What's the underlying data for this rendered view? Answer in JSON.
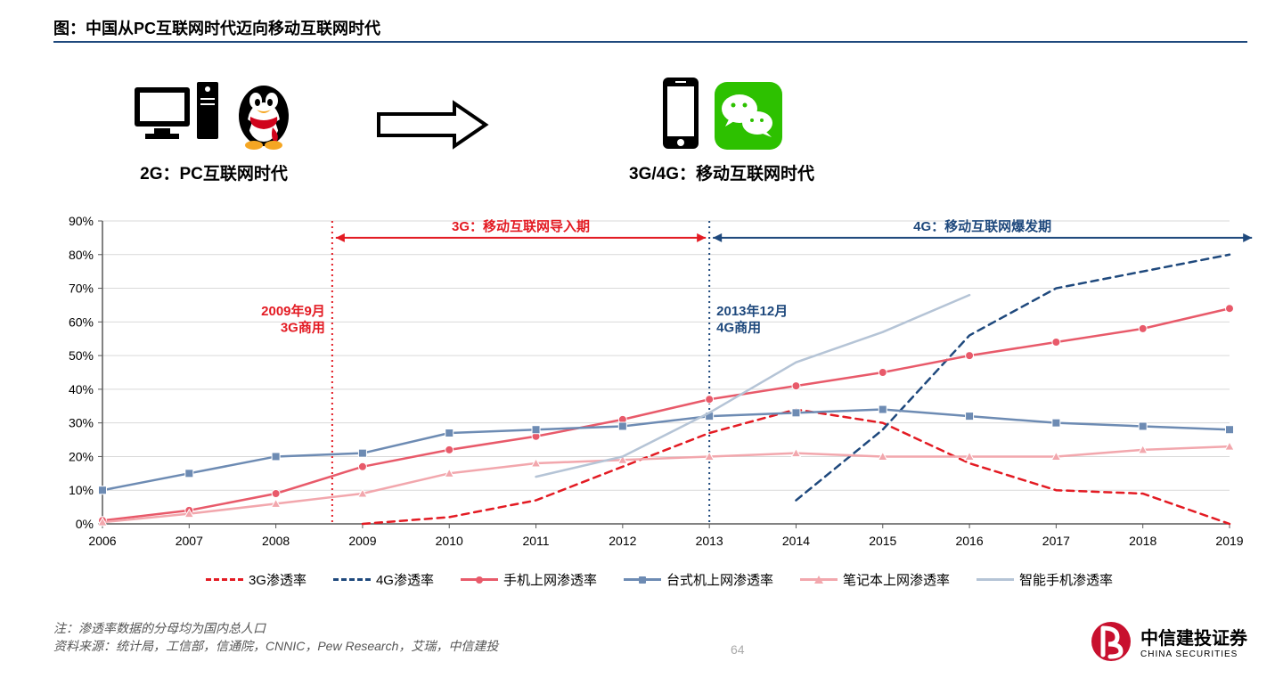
{
  "title": "图：中国从PC互联网时代迈向移动互联网时代",
  "title_underline_color": "#1f497d",
  "eras": {
    "left_label": "2G：PC互联网时代",
    "right_label": "3G/4G：移动互联网时代"
  },
  "chart": {
    "type": "line",
    "xlim": [
      2006,
      2019
    ],
    "ylim": [
      0,
      90
    ],
    "ytick_step": 10,
    "y_suffix": "%",
    "categories": [
      "2006",
      "2007",
      "2008",
      "2009",
      "2010",
      "2011",
      "2012",
      "2013",
      "2014",
      "2015",
      "2016",
      "2017",
      "2018",
      "2019"
    ],
    "grid_color": "#d9d9d9",
    "axis_color": "#595959",
    "background_color": "#ffffff",
    "label_fontsize": 14,
    "series": [
      {
        "name": "3G渗透率",
        "color": "#e31b23",
        "style": "dashed",
        "width": 2.5,
        "marker": "none",
        "data": [
          null,
          null,
          null,
          0,
          2,
          7,
          17,
          27,
          34,
          30,
          18,
          10,
          9,
          0
        ]
      },
      {
        "name": "4G渗透率",
        "color": "#1f497d",
        "style": "dashed",
        "width": 2.5,
        "marker": "none",
        "data": [
          null,
          null,
          null,
          null,
          null,
          null,
          null,
          null,
          7,
          28,
          56,
          70,
          75,
          80
        ]
      },
      {
        "name": "手机上网渗透率",
        "color": "#e85a6a",
        "style": "solid",
        "width": 2.5,
        "marker": "circle",
        "marker_fill": "#e85a6a",
        "data": [
          1,
          4,
          9,
          17,
          22,
          26,
          31,
          37,
          41,
          45,
          50,
          54,
          58,
          64
        ]
      },
      {
        "name": "台式机上网渗透率",
        "color": "#6d8bb3",
        "style": "solid",
        "width": 2.5,
        "marker": "square",
        "marker_fill": "#6d8bb3",
        "data": [
          10,
          15,
          20,
          21,
          27,
          28,
          29,
          32,
          33,
          34,
          32,
          30,
          29,
          28
        ]
      },
      {
        "name": "笔记本上网渗透率",
        "color": "#f2a7ad",
        "style": "solid",
        "width": 2.5,
        "marker": "triangle",
        "marker_fill": "#f2a7ad",
        "data": [
          0.5,
          3,
          6,
          9,
          15,
          18,
          19,
          20,
          21,
          20,
          20,
          20,
          22,
          23
        ]
      },
      {
        "name": "智能手机渗透率",
        "color": "#b5c4d6",
        "style": "solid",
        "width": 2.5,
        "marker": "none",
        "data": [
          null,
          null,
          null,
          null,
          null,
          14,
          20,
          33,
          48,
          57,
          68,
          null,
          null,
          null
        ]
      }
    ],
    "vlines": [
      {
        "x": 2008.65,
        "color": "#e31b23",
        "style": "dotted",
        "label1": "2009年9月",
        "label2": "3G商用",
        "label_color": "#e31b23"
      },
      {
        "x": 2013.0,
        "color": "#1f497d",
        "style": "dotted",
        "label1": "2013年12月",
        "label2": "4G商用",
        "label_color": "#1f497d"
      }
    ],
    "span_arrows": [
      {
        "from_x": 2008.65,
        "to_x": 2013.0,
        "y": 85,
        "color": "#e31b23",
        "label": "3G：移动互联网导入期"
      },
      {
        "from_x": 2013.0,
        "to_x": 2019.3,
        "y": 85,
        "color": "#1f497d",
        "label": "4G：移动互联网爆发期"
      }
    ]
  },
  "legend_items": [
    {
      "label": "3G渗透率",
      "color": "#e31b23",
      "dashed": true,
      "marker": "none"
    },
    {
      "label": "4G渗透率",
      "color": "#1f497d",
      "dashed": true,
      "marker": "none"
    },
    {
      "label": "手机上网渗透率",
      "color": "#e85a6a",
      "dashed": false,
      "marker": "circle"
    },
    {
      "label": "台式机上网渗透率",
      "color": "#6d8bb3",
      "dashed": false,
      "marker": "square"
    },
    {
      "label": "笔记本上网渗透率",
      "color": "#f2a7ad",
      "dashed": false,
      "marker": "triangle"
    },
    {
      "label": "智能手机渗透率",
      "color": "#b5c4d6",
      "dashed": false,
      "marker": "none"
    }
  ],
  "footnote1": "注：渗透率数据的分母均为国内总人口",
  "footnote2": "资料来源：统计局，工信部，信通院，CNNIC，Pew Research，艾瑞，中信建投",
  "page_number": "64",
  "logo": {
    "name_cn": "中信建投证券",
    "name_en": "CHINA SECURITIES",
    "badge_bg": "#c8102e"
  }
}
